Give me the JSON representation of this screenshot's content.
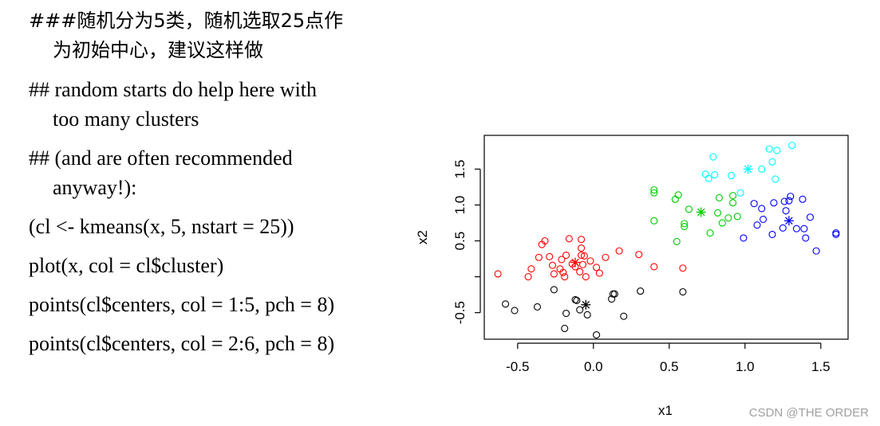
{
  "code": {
    "comment_zh_1": "###随机分为5类，随机选取25点作",
    "comment_zh_2": "为初始中心，建议这样做",
    "comment_en_1": "## random starts do help here with",
    "comment_en_2": "too many clusters",
    "comment_en_3": "## (and are often recommended",
    "comment_en_4": "anyway!):",
    "line_kmeans": "(cl <- kmeans(x, 5, nstart = 25))",
    "line_plot": "plot(x, col = cl$cluster)",
    "line_points1": "points(cl$centers, col = 1:5, pch = 8)",
    "line_points2": "points(cl$centers, col = 2:6, pch = 8)"
  },
  "watermark": "CSDN @THE ORDER",
  "chart_data": {
    "type": "scatter",
    "xlabel": "x1",
    "ylabel": "x2",
    "xlim": [
      -0.72,
      1.68
    ],
    "ylim": [
      -0.87,
      1.97
    ],
    "xticks": [
      -0.5,
      0.0,
      0.5,
      1.0,
      1.5
    ],
    "xtick_labels": [
      "-0.5",
      "0.0",
      "0.5",
      "1.0",
      "1.5"
    ],
    "yticks": [
      -0.5,
      0.0,
      0.5,
      1.0,
      1.5
    ],
    "ytick_labels": [
      "-0.5",
      "",
      "0.5",
      "1.0",
      "1.5"
    ],
    "series": [
      {
        "color": "#000000",
        "points": [
          [
            -0.58,
            -0.38
          ],
          [
            -0.52,
            -0.47
          ],
          [
            -0.37,
            -0.42
          ],
          [
            -0.26,
            -0.18
          ],
          [
            -0.18,
            -0.51
          ],
          [
            -0.12,
            -0.32
          ],
          [
            -0.11,
            -0.33
          ],
          [
            -0.09,
            -0.46
          ],
          [
            -0.04,
            -0.53
          ],
          [
            0.12,
            -0.31
          ],
          [
            0.13,
            -0.24
          ],
          [
            0.14,
            -0.24
          ],
          [
            0.2,
            -0.55
          ],
          [
            0.31,
            -0.2
          ],
          [
            0.59,
            -0.21
          ],
          [
            -0.19,
            -0.72
          ],
          [
            0.02,
            -0.81
          ]
        ],
        "center": [
          -0.05,
          -0.39
        ]
      },
      {
        "color": "#ff0000",
        "points": [
          [
            -0.63,
            0.04
          ],
          [
            -0.43,
            0.0
          ],
          [
            -0.41,
            0.11
          ],
          [
            -0.36,
            0.27
          ],
          [
            -0.34,
            0.45
          ],
          [
            -0.32,
            0.5
          ],
          [
            -0.29,
            0.28
          ],
          [
            -0.27,
            0.16
          ],
          [
            -0.26,
            0.04
          ],
          [
            -0.22,
            0.11
          ],
          [
            -0.21,
            0.24
          ],
          [
            -0.2,
            0.06
          ],
          [
            -0.19,
            0.0
          ],
          [
            -0.18,
            0.3
          ],
          [
            -0.16,
            0.53
          ],
          [
            -0.14,
            0.18
          ],
          [
            -0.12,
            0.14
          ],
          [
            -0.09,
            0.07
          ],
          [
            -0.08,
            0.4
          ],
          [
            -0.08,
            0.52
          ],
          [
            -0.07,
            0.17
          ],
          [
            -0.06,
            0.29
          ],
          [
            -0.05,
            0.0
          ],
          [
            -0.02,
            0.22
          ],
          [
            0.02,
            0.13
          ],
          [
            0.04,
            0.05
          ],
          [
            0.08,
            0.27
          ],
          [
            0.17,
            0.36
          ],
          [
            0.3,
            0.31
          ],
          [
            0.4,
            0.14
          ],
          [
            0.59,
            0.12
          ],
          [
            -0.08,
            0.3
          ]
        ],
        "center": [
          -0.12,
          0.2
        ]
      },
      {
        "color": "#00cd00",
        "points": [
          [
            0.4,
            0.78
          ],
          [
            0.4,
            1.17
          ],
          [
            0.4,
            1.21
          ],
          [
            0.54,
            1.08
          ],
          [
            0.55,
            0.49
          ],
          [
            0.56,
            1.14
          ],
          [
            0.6,
            0.7
          ],
          [
            0.6,
            0.74
          ],
          [
            0.63,
            0.94
          ],
          [
            0.77,
            0.61
          ],
          [
            0.82,
            0.89
          ],
          [
            0.83,
            1.1
          ],
          [
            0.85,
            0.75
          ],
          [
            0.89,
            0.82
          ],
          [
            0.92,
            1.03
          ],
          [
            0.92,
            1.13
          ],
          [
            0.95,
            0.84
          ]
        ],
        "center": [
          0.71,
          0.9
        ]
      },
      {
        "color": "#0000ff",
        "points": [
          [
            0.99,
            0.54
          ],
          [
            1.06,
            1.02
          ],
          [
            1.08,
            0.72
          ],
          [
            1.11,
            0.95
          ],
          [
            1.12,
            0.8
          ],
          [
            1.18,
            0.59
          ],
          [
            1.19,
            1.03
          ],
          [
            1.25,
            0.68
          ],
          [
            1.26,
            1.05
          ],
          [
            1.27,
            0.92
          ],
          [
            1.29,
            1.06
          ],
          [
            1.3,
            1.12
          ],
          [
            1.34,
            0.67
          ],
          [
            1.38,
            1.08
          ],
          [
            1.39,
            0.67
          ],
          [
            1.4,
            0.54
          ],
          [
            1.43,
            0.83
          ],
          [
            1.47,
            0.36
          ],
          [
            1.6,
            0.61
          ],
          [
            1.6,
            0.59
          ]
        ],
        "center": [
          1.29,
          0.78
        ]
      },
      {
        "color": "#00ffff",
        "points": [
          [
            0.74,
            1.43
          ],
          [
            0.76,
            1.37
          ],
          [
            0.79,
            1.67
          ],
          [
            0.8,
            1.42
          ],
          [
            0.91,
            1.41
          ],
          [
            0.97,
            1.17
          ],
          [
            1.11,
            1.5
          ],
          [
            1.16,
            1.78
          ],
          [
            1.18,
            1.6
          ],
          [
            1.2,
            1.36
          ],
          [
            1.21,
            1.76
          ],
          [
            1.31,
            1.83
          ]
        ],
        "center": [
          1.02,
          1.5
        ]
      }
    ]
  }
}
